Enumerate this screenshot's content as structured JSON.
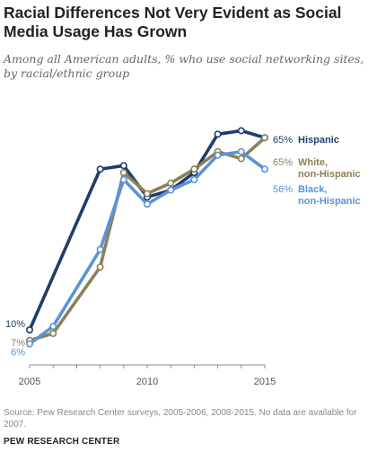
{
  "title": "Racial Differences Not Very Evident as Social Media Usage Has Grown",
  "subtitle": "Among all American adults, % who use social networking sites, by racial/ethnic group",
  "source": "Source: Pew Research Center surveys, 2005-2006, 2008-2015.  No data are available for 2007.",
  "brand": "PEW RESEARCH CENTER",
  "colors": {
    "hispanic": "#1f3d6b",
    "white": "#8c7f58",
    "black": "#5b93d8",
    "axis": "#8a8a8a",
    "tick_label": "#555555"
  },
  "chart_data": {
    "type": "line",
    "x_ticks": [
      "2005",
      "2010",
      "2015"
    ],
    "xlim": [
      2005,
      2015
    ],
    "ylim": [
      0,
      72
    ],
    "grid": false,
    "series": [
      {
        "name": "Hispanic",
        "color": "#1f3d6b",
        "start_label": "10%",
        "end_label": "65%",
        "points": [
          [
            2005,
            10
          ],
          [
            2008,
            56
          ],
          [
            2009,
            57
          ],
          [
            2010,
            48
          ],
          [
            2011,
            50
          ],
          [
            2012,
            55
          ],
          [
            2013,
            66
          ],
          [
            2014,
            67
          ],
          [
            2015,
            65
          ]
        ]
      },
      {
        "name": "White, non-Hispanic",
        "color": "#8c7f58",
        "start_label": "7%",
        "end_label": "65%",
        "points": [
          [
            2005,
            7
          ],
          [
            2006,
            9
          ],
          [
            2008,
            28
          ],
          [
            2009,
            55
          ],
          [
            2010,
            49
          ],
          [
            2011,
            52
          ],
          [
            2012,
            56
          ],
          [
            2013,
            61
          ],
          [
            2014,
            59
          ],
          [
            2015,
            65
          ]
        ]
      },
      {
        "name": "Black, non-Hispanic",
        "color": "#5b93d8",
        "start_label": "6%",
        "end_label": "56%",
        "points": [
          [
            2005,
            6
          ],
          [
            2006,
            11
          ],
          [
            2008,
            33
          ],
          [
            2009,
            53
          ],
          [
            2010,
            46
          ],
          [
            2011,
            50
          ],
          [
            2012,
            53
          ],
          [
            2013,
            60
          ],
          [
            2014,
            61
          ],
          [
            2015,
            56
          ]
        ]
      }
    ]
  }
}
